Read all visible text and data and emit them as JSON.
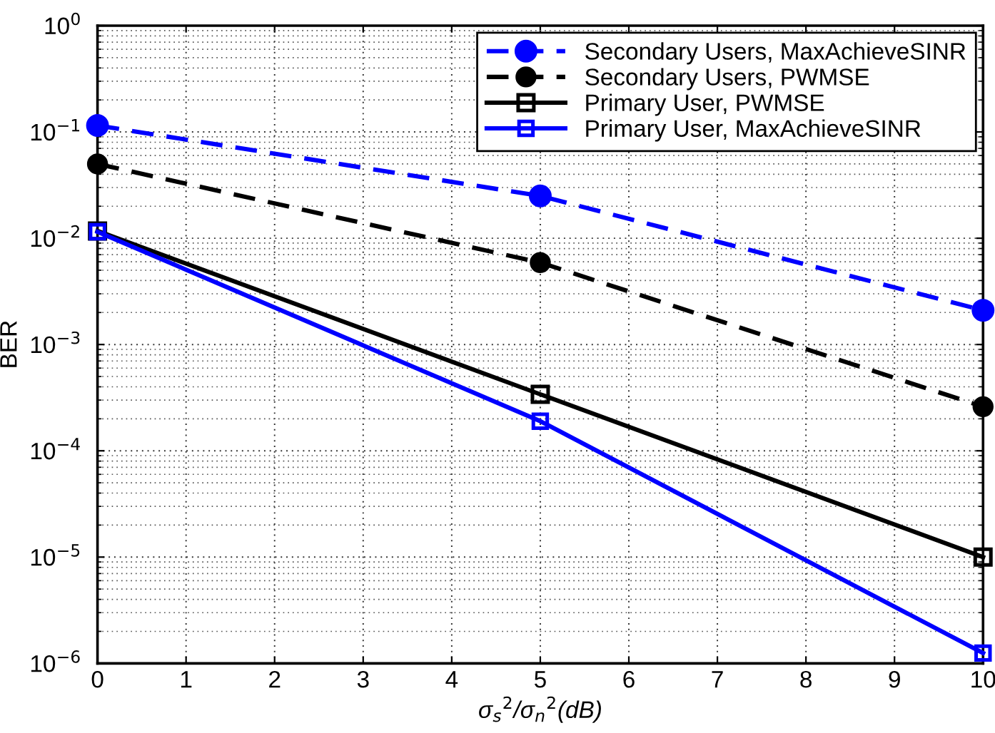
{
  "chart_data": {
    "type": "line",
    "xlabel": "σ$_{s}$$^{2}$/σ$_{n}$$^{2}$(dB)",
    "ylabel": "BER",
    "x": [
      0,
      5,
      10
    ],
    "series": [
      {
        "name": "Secondary Users, MaxAchieveSINR",
        "color": "#0000ff",
        "values": [
          0.115,
          0.025,
          0.0021
        ],
        "marker": "circle",
        "line_style": "dashed"
      },
      {
        "name": "Secondary Users, PWMSE",
        "color": "#000000",
        "values": [
          0.05,
          0.0059,
          0.00026
        ],
        "marker": "circle",
        "line_style": "dashed"
      },
      {
        "name": "Primary User, PWMSE",
        "color": "#000000",
        "values": [
          0.0117,
          0.00034,
          1e-05
        ],
        "marker": "square",
        "line_style": "solid"
      },
      {
        "name": "Primary User, MaxAchieveSINR",
        "color": "#0000ff",
        "values": [
          0.0115,
          0.00019,
          1.25e-06
        ],
        "marker": "square",
        "line_style": "solid"
      }
    ],
    "log": "y",
    "xlim": [
      0,
      10
    ],
    "xticks": [
      0,
      1,
      2,
      3,
      4,
      5,
      6,
      7,
      8,
      9,
      10
    ],
    "ylim": [
      1e-06,
      1
    ],
    "yticks": [
      {
        "value": 1e-06,
        "label": "10$^{−6}$"
      },
      {
        "value": 1e-05,
        "label": "10$^{−5}$"
      },
      {
        "value": 0.0001,
        "label": "10$^{−4}$"
      },
      {
        "value": 0.001,
        "label": "10$^{−3}$"
      },
      {
        "value": 0.01,
        "label": "10$^{−2}$"
      },
      {
        "value": 0.1,
        "label": "10$^{−1}$"
      },
      {
        "value": 1,
        "label": "10$^{0}$"
      }
    ],
    "grid": true,
    "legend": "top right"
  }
}
